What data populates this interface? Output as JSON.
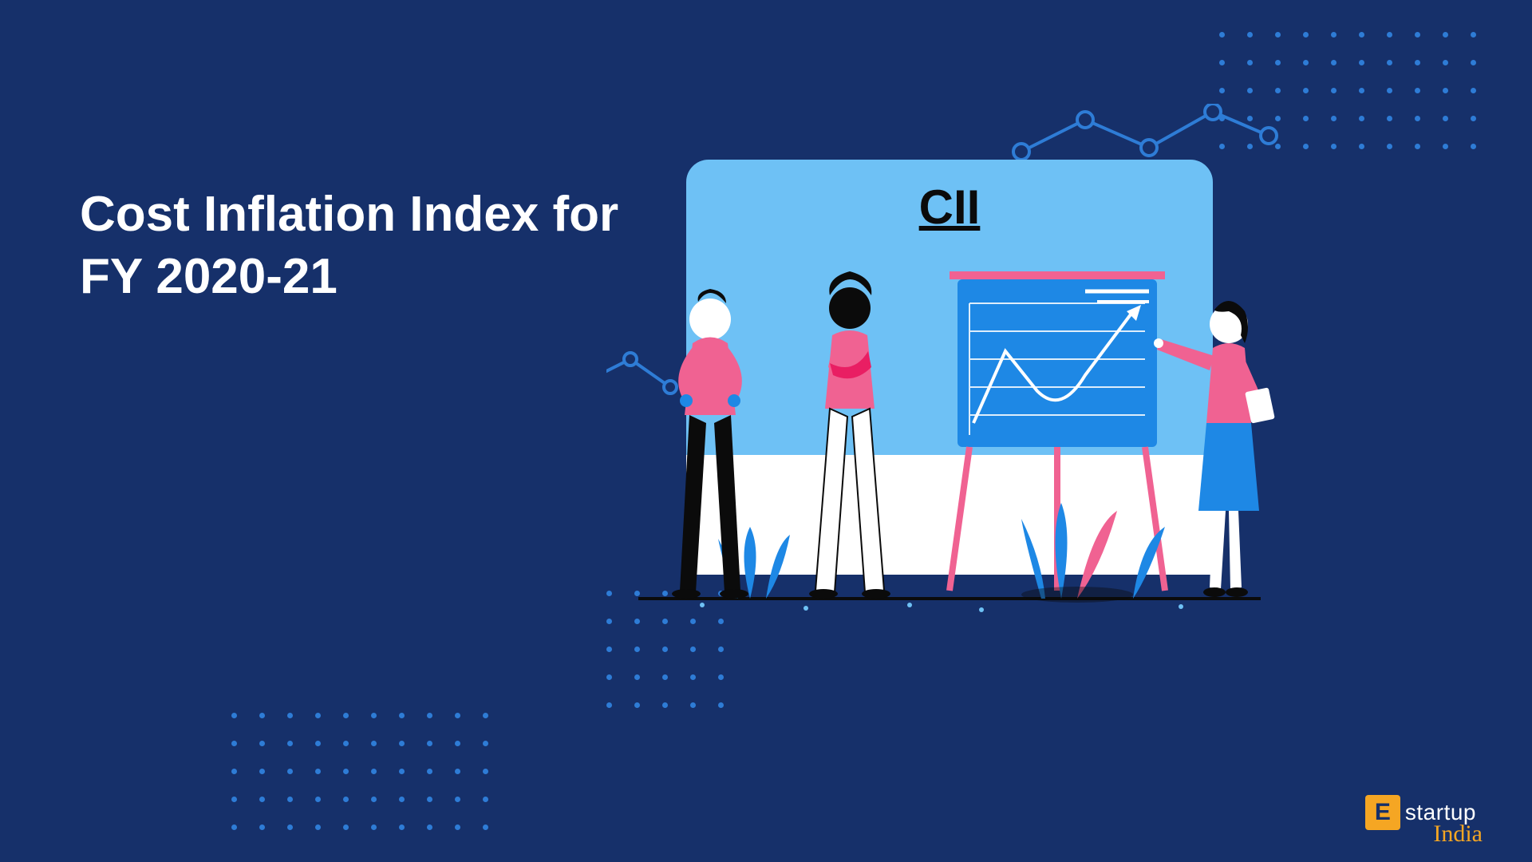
{
  "title": "Cost Inflation Index for FY 2020-21",
  "panel_label": "CII",
  "logo": {
    "mark": "E",
    "text": "startup",
    "sub": "India"
  },
  "colors": {
    "background": "#16306a",
    "accent_blue": "#2e7cd6",
    "light_blue": "#6ec1f5",
    "mid_blue": "#1e88e5",
    "pink": "#f06292",
    "dark_pink": "#e91e63",
    "white": "#ffffff",
    "black": "#0b0b0b",
    "gold": "#f5a623"
  },
  "dot_grids": {
    "top_right": {
      "rows": 5,
      "cols": 10
    },
    "bottom_left": {
      "rows": 5,
      "cols": 10
    },
    "middle": {
      "rows": 5,
      "cols": 5
    }
  },
  "illustration": {
    "type": "infographic",
    "panel": {
      "fill": "#6ec1f5",
      "corner_radius": 28
    },
    "chart_board": {
      "fill": "#1e88e5",
      "grid_lines": 6,
      "grid_color": "#ffffff",
      "easel_color": "#f06292",
      "trend_line_color": "#ffffff"
    },
    "background_graph_nodes": 5,
    "people": [
      {
        "shirt": "#f06292",
        "pants": "#0b0b0b",
        "skin": "#ffffff"
      },
      {
        "shirt": "#f06292",
        "pants": "#ffffff",
        "skin": "#0b0b0b"
      },
      {
        "shirt": "#f06292",
        "skirt": "#1e88e5",
        "skin": "#ffffff"
      }
    ],
    "plants": {
      "leaf_color": "#1e88e5",
      "pot_color": "#f06292"
    }
  }
}
